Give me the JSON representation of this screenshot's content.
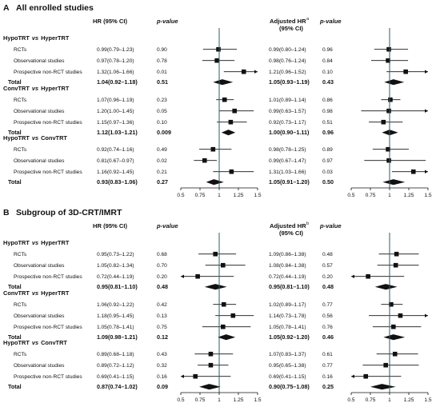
{
  "chart_data": [
    {
      "type": "forest",
      "title": "All enrolled studies",
      "panel_letter": "A",
      "headers": {
        "hr": "HR (95% CI)",
        "p": "p-value",
        "adj_hr_line1": "Adjusted HR",
        "adj_hr_sup": "a",
        "adj_hr_line2": "(95% CI)",
        "adj_p": "p-value"
      },
      "xticks": [
        "0.5",
        "0.75",
        "1",
        "1.25",
        "1.5"
      ],
      "xlim": [
        0.5,
        1.5
      ],
      "reference_line": 1,
      "groups": [
        {
          "name": "HypoTRT vs HyperTRT",
          "name_a": "HypoTRT",
          "vs": "vs",
          "name_b": "HyperTRT",
          "rows": [
            {
              "label": "RCTs",
              "hr": 0.99,
              "lo": 0.79,
              "hi": 1.23,
              "hr_text": "0.99(0.79–1.23)",
              "p": "0.90",
              "adj_hr": 0.99,
              "adj_lo": 0.8,
              "adj_hi": 1.24,
              "adj_text": "0.99(0.80–1.24)",
              "adj_p": "0.96"
            },
            {
              "label": "Observational studies",
              "hr": 0.97,
              "lo": 0.78,
              "hi": 1.2,
              "hr_text": "0.97(0.78–1.20)",
              "p": "0.78",
              "adj_hr": 0.98,
              "adj_lo": 0.76,
              "adj_hi": 1.24,
              "adj_text": "0.98(0.76–1.24)",
              "adj_p": "0.84"
            },
            {
              "label": "Prospective non-RCT studies",
              "hr": 1.32,
              "lo": 1.06,
              "hi": 1.66,
              "hr_text": "1.32(1.06–1.66)",
              "p": "0.01",
              "adj_hr": 1.21,
              "adj_lo": 0.96,
              "adj_hi": 1.52,
              "adj_text": "1.21(0.96–1.52)",
              "adj_p": "0.10"
            }
          ],
          "total": {
            "label": "Total",
            "hr": 1.04,
            "lo": 0.92,
            "hi": 1.18,
            "hr_text": "1.04(0.92–1.18)",
            "p": "0.51",
            "adj_hr": 1.05,
            "adj_lo": 0.93,
            "adj_hi": 1.19,
            "adj_text": "1.05(0.93–1.19)",
            "adj_p": "0.43"
          }
        },
        {
          "name": "ConvTRT vs HyperTRT",
          "name_a": "ConvTRT",
          "vs": "vs",
          "name_b": "HyperTRT",
          "rows": [
            {
              "label": "RCTs",
              "hr": 1.07,
              "lo": 0.96,
              "hi": 1.19,
              "hr_text": "1.07(0.96–1.19)",
              "p": "0.23",
              "adj_hr": 1.01,
              "adj_lo": 0.89,
              "adj_hi": 1.14,
              "adj_text": "1.01(0.89–1.14)",
              "adj_p": "0.86"
            },
            {
              "label": "Observational studies",
              "hr": 1.2,
              "lo": 1.0,
              "hi": 1.45,
              "hr_text": "1.20(1.00–1.45)",
              "p": "0.05",
              "adj_hr": 0.99,
              "adj_lo": 0.63,
              "adj_hi": 1.57,
              "adj_text": "0.99(0.63–1.57)",
              "adj_p": "0.98"
            },
            {
              "label": "Prospective non-RCT studies",
              "hr": 1.15,
              "lo": 0.97,
              "hi": 1.36,
              "hr_text": "1.15(0.97–1.36)",
              "p": "0.10",
              "adj_hr": 0.92,
              "adj_lo": 0.73,
              "adj_hi": 1.17,
              "adj_text": "0.92(0.73–1.17)",
              "adj_p": "0.51"
            }
          ],
          "total": {
            "label": "Total",
            "hr": 1.12,
            "lo": 1.03,
            "hi": 1.21,
            "hr_text": "1.12(1.03–1.21)",
            "p": "0.009",
            "adj_hr": 1.0,
            "adj_lo": 0.9,
            "adj_hi": 1.11,
            "adj_text": "1.00(0.90–1.11)",
            "adj_p": "0.96"
          }
        },
        {
          "name": "HypoTRT vs ConvTRT",
          "name_a": "HypoTRT",
          "vs": "vs",
          "name_b": "ConvTRT",
          "rows": [
            {
              "label": "RCTs",
              "hr": 0.92,
              "lo": 0.74,
              "hi": 1.16,
              "hr_text": "0.92(0.74–1.16)",
              "p": "0.49",
              "adj_hr": 0.98,
              "adj_lo": 0.78,
              "adj_hi": 1.25,
              "adj_text": "0.98(0.78–1.25)",
              "adj_p": "0.89"
            },
            {
              "label": "Observational studies",
              "hr": 0.81,
              "lo": 0.67,
              "hi": 0.97,
              "hr_text": "0.81(0.67–0.97)",
              "p": "0.02",
              "adj_hr": 0.99,
              "adj_lo": 0.67,
              "adj_hi": 1.47,
              "adj_text": "0.99(0.67–1.47)",
              "adj_p": "0.97"
            },
            {
              "label": "Prospective non-RCT studies",
              "hr": 1.16,
              "lo": 0.92,
              "hi": 1.45,
              "hr_text": "1.16(0.92–1.45)",
              "p": "0.21",
              "adj_hr": 1.31,
              "adj_lo": 1.03,
              "adj_hi": 1.66,
              "adj_text": "1.31(1.03–1.66)",
              "adj_p": "0.03"
            }
          ],
          "total": {
            "label": "Total",
            "hr": 0.93,
            "lo": 0.83,
            "hi": 1.06,
            "hr_text": "0.93(0.83–1.06)",
            "p": "0.27",
            "adj_hr": 1.05,
            "adj_lo": 0.91,
            "adj_hi": 1.2,
            "adj_text": "1.05(0.91–1.20)",
            "adj_p": "0.50"
          }
        }
      ]
    },
    {
      "type": "forest",
      "title": "Subgroup of 3D-CRT/IMRT",
      "panel_letter": "B",
      "headers": {
        "hr": "HR (95% CI)",
        "p": "p-value",
        "adj_hr_line1": "Adjusted HR",
        "adj_hr_sup": "b",
        "adj_hr_line2": "(95% CI)",
        "adj_p": "p-value"
      },
      "xticks": [
        "0.5",
        "0.75",
        "1",
        "1.25",
        "1.5"
      ],
      "xlim": [
        0.5,
        1.5
      ],
      "reference_line": 1,
      "groups": [
        {
          "name": "HypoTRT vs HyperTRT",
          "name_a": "HypoTRT",
          "vs": "vs",
          "name_b": "HyperTRT",
          "rows": [
            {
              "label": "RCTs",
              "hr": 0.95,
              "lo": 0.73,
              "hi": 1.22,
              "hr_text": "0.95(0.73–1.22)",
              "p": "0.68",
              "adj_hr": 1.09,
              "adj_lo": 0.86,
              "adj_hi": 1.38,
              "adj_text": "1.09(0.86–1.38)",
              "adj_p": "0.48"
            },
            {
              "label": "Observational studies",
              "hr": 1.05,
              "lo": 0.82,
              "hi": 1.34,
              "hr_text": "1.05(0.82–1.34)",
              "p": "0.70",
              "adj_hr": 1.08,
              "adj_lo": 0.84,
              "adj_hi": 1.38,
              "adj_text": "1.08(0.84–1.38)",
              "adj_p": "0.57"
            },
            {
              "label": "Prospective non-RCT studies",
              "hr": 0.72,
              "lo": 0.44,
              "hi": 1.19,
              "hr_text": "0.72(0.44–1.19)",
              "p": "0.20",
              "adj_hr": 0.72,
              "adj_lo": 0.44,
              "adj_hi": 1.19,
              "adj_text": "0.72(0.44–1.19)",
              "adj_p": "0.20"
            }
          ],
          "total": {
            "label": "Total",
            "hr": 0.95,
            "lo": 0.81,
            "hi": 1.1,
            "hr_text": "0.95(0.81–1.10)",
            "p": "0.48",
            "adj_hr": 0.95,
            "adj_lo": 0.81,
            "adj_hi": 1.1,
            "adj_text": "0.95(0.81–1.10)",
            "adj_p": "0.48"
          }
        },
        {
          "name": "ConvTRT vs HyperTRT",
          "name_a": "ConvTRT",
          "vs": "vs",
          "name_b": "HyperTRT",
          "rows": [
            {
              "label": "RCTs",
              "hr": 1.06,
              "lo": 0.92,
              "hi": 1.22,
              "hr_text": "1.06(0.92–1.22)",
              "p": "0.42",
              "adj_hr": 1.02,
              "adj_lo": 0.89,
              "adj_hi": 1.17,
              "adj_text": "1.02(0.89–1.17)",
              "adj_p": "0.77"
            },
            {
              "label": "Observational studies",
              "hr": 1.18,
              "lo": 0.95,
              "hi": 1.45,
              "hr_text": "1.18(0.95–1.45)",
              "p": "0.13",
              "adj_hr": 1.14,
              "adj_lo": 0.73,
              "adj_hi": 1.78,
              "adj_text": "1.14(0.73–1.78)",
              "adj_p": "0.56"
            },
            {
              "label": "Prospective non-RCT studies",
              "hr": 1.05,
              "lo": 0.78,
              "hi": 1.41,
              "hr_text": "1.05(0.78–1.41)",
              "p": "0.75",
              "adj_hr": 1.05,
              "adj_lo": 0.78,
              "adj_hi": 1.41,
              "adj_text": "1.05(0.78–1.41)",
              "adj_p": "0.76"
            }
          ],
          "total": {
            "label": "Total",
            "hr": 1.09,
            "lo": 0.98,
            "hi": 1.21,
            "hr_text": "1.09(0.98–1.21)",
            "p": "0.12",
            "adj_hr": 1.05,
            "adj_lo": 0.92,
            "adj_hi": 1.2,
            "adj_text": "1.05(0.92–1.20)",
            "adj_p": "0.46"
          }
        },
        {
          "name": "HypoTRT vs ConvTRT",
          "name_a": "HypoTRT",
          "vs": "vs",
          "name_b": "ConvTRT",
          "rows": [
            {
              "label": "RCTs",
              "hr": 0.89,
              "lo": 0.68,
              "hi": 1.18,
              "hr_text": "0.89(0.68–1.18)",
              "p": "0.43",
              "adj_hr": 1.07,
              "adj_lo": 0.83,
              "adj_hi": 1.37,
              "adj_text": "1.07(0.83–1.37)",
              "adj_p": "0.61"
            },
            {
              "label": "Observational studies",
              "hr": 0.89,
              "lo": 0.72,
              "hi": 1.12,
              "hr_text": "0.89(0.72–1.12)",
              "p": "0.32",
              "adj_hr": 0.95,
              "adj_lo": 0.65,
              "adj_hi": 1.38,
              "adj_text": "0.95(0.65–1.38)",
              "adj_p": "0.77"
            },
            {
              "label": "Prospective non-RCT studies",
              "hr": 0.69,
              "lo": 0.41,
              "hi": 1.15,
              "hr_text": "0.69(0.41–1.15)",
              "p": "0.16",
              "adj_hr": 0.69,
              "adj_lo": 0.41,
              "adj_hi": 1.15,
              "adj_text": "0.69(0.41–1.15)",
              "adj_p": "0.16"
            }
          ],
          "total": {
            "label": "Total",
            "hr": 0.87,
            "lo": 0.74,
            "hi": 1.02,
            "hr_text": "0.87(0.74–1.02)",
            "p": "0.09",
            "adj_hr": 0.9,
            "adj_lo": 0.75,
            "adj_hi": 1.08,
            "adj_text": "0.90(0.75–1.08)",
            "adj_p": "0.25"
          }
        }
      ]
    }
  ],
  "colors": {
    "reference_line": "#2e5b68",
    "marker": "#111111",
    "text": "#111111"
  }
}
